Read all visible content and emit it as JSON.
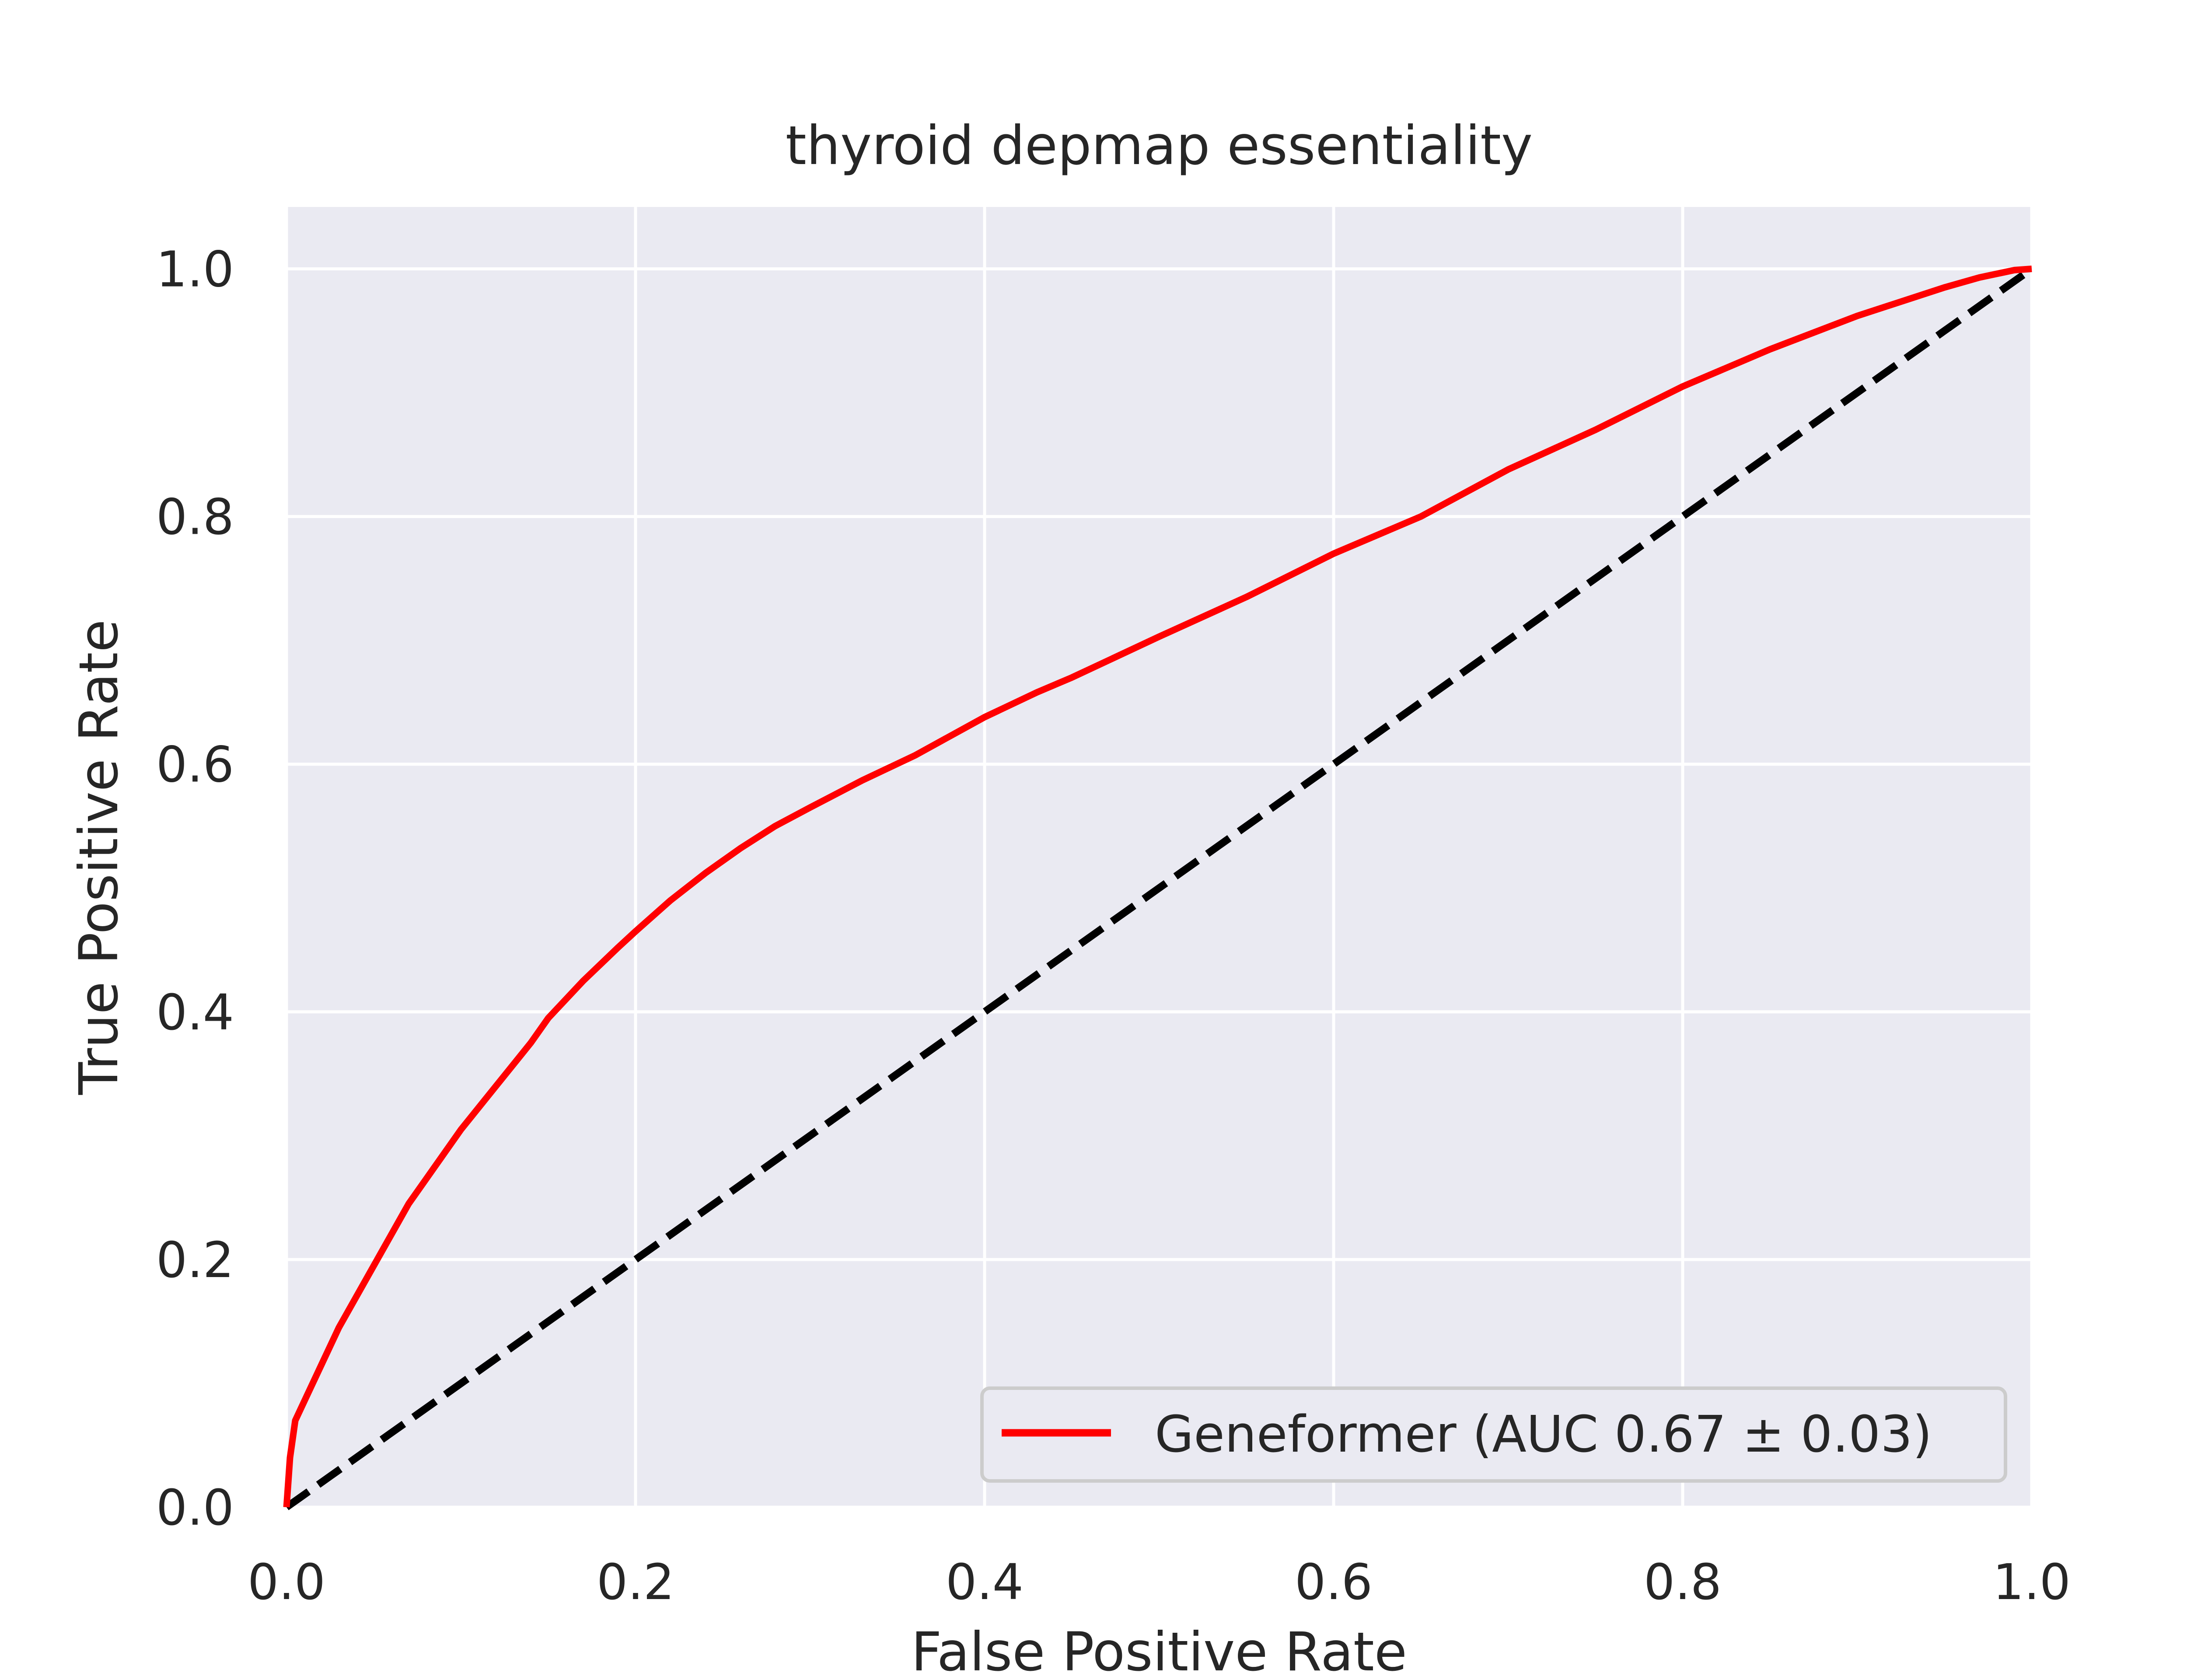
{
  "chart_data": {
    "type": "line",
    "title": "thyroid depmap essentiality",
    "xlabel": "False Positive Rate",
    "ylabel": "True Positive Rate",
    "xlim": [
      0.0,
      1.0
    ],
    "ylim": [
      0.0,
      1.05
    ],
    "xticks": [
      0.0,
      0.2,
      0.4,
      0.6,
      0.8,
      1.0
    ],
    "xtick_labels": [
      "0.0",
      "0.2",
      "0.4",
      "0.6",
      "0.8",
      "1.0"
    ],
    "yticks": [
      0.0,
      0.2,
      0.4,
      0.6,
      0.8,
      1.0
    ],
    "ytick_labels": [
      "0.0",
      "0.2",
      "0.4",
      "0.6",
      "0.8",
      "1.0"
    ],
    "grid": true,
    "legend_position": "lower-right",
    "series": [
      {
        "name": "Geneformer (AUC 0.67 ± 0.03)",
        "color": "#ff0000",
        "style": "solid",
        "x": [
          0.0,
          0.002,
          0.005,
          0.01,
          0.02,
          0.03,
          0.04,
          0.05,
          0.06,
          0.07,
          0.08,
          0.09,
          0.1,
          0.12,
          0.14,
          0.15,
          0.17,
          0.19,
          0.2,
          0.22,
          0.24,
          0.26,
          0.28,
          0.3,
          0.33,
          0.36,
          0.4,
          0.43,
          0.45,
          0.5,
          0.55,
          0.6,
          0.65,
          0.7,
          0.75,
          0.8,
          0.85,
          0.9,
          0.95,
          0.97,
          0.99,
          1.0
        ],
        "y": [
          0.0,
          0.04,
          0.07,
          0.085,
          0.115,
          0.145,
          0.17,
          0.195,
          0.22,
          0.245,
          0.265,
          0.285,
          0.305,
          0.34,
          0.375,
          0.395,
          0.425,
          0.452,
          0.465,
          0.49,
          0.512,
          0.532,
          0.55,
          0.565,
          0.587,
          0.607,
          0.638,
          0.658,
          0.67,
          0.703,
          0.735,
          0.77,
          0.8,
          0.838,
          0.87,
          0.905,
          0.935,
          0.962,
          0.985,
          0.993,
          0.999,
          1.0
        ]
      },
      {
        "name": "",
        "color": "#000000",
        "style": "dashed",
        "x": [
          0.0,
          1.0
        ],
        "y": [
          0.0,
          1.0
        ]
      }
    ]
  }
}
